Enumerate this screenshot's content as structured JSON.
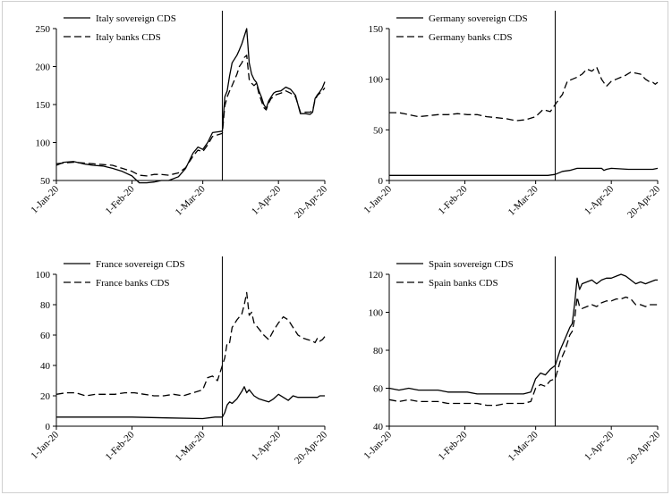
{
  "chart_data": [
    {
      "type": "line",
      "name": "italy",
      "ylim": [
        50,
        250
      ],
      "yticks": [
        50,
        100,
        150,
        200,
        250
      ],
      "xlim": [
        "2020-01-01",
        "2020-04-20"
      ],
      "xticks": [
        {
          "date": "2020-01-01",
          "label": "1-Jan-20"
        },
        {
          "date": "2020-02-01",
          "label": "1-Feb-20"
        },
        {
          "date": "2020-03-01",
          "label": "1-Mar-20"
        },
        {
          "date": "2020-04-01",
          "label": "1-Apr-20"
        },
        {
          "date": "2020-04-20",
          "label": "20-Apr-20"
        }
      ],
      "vline": "2020-03-09",
      "legend_position": "top-left",
      "series": [
        {
          "name": "Italy sovereign CDS",
          "style": "solid",
          "x": [
            "2020-01-01",
            "2020-01-04",
            "2020-01-08",
            "2020-01-12",
            "2020-01-16",
            "2020-01-20",
            "2020-01-24",
            "2020-01-28",
            "2020-02-01",
            "2020-02-04",
            "2020-02-07",
            "2020-02-10",
            "2020-02-13",
            "2020-02-16",
            "2020-02-20",
            "2020-02-23",
            "2020-02-26",
            "2020-02-28",
            "2020-03-01",
            "2020-03-03",
            "2020-03-05",
            "2020-03-07",
            "2020-03-09",
            "2020-03-10",
            "2020-03-11",
            "2020-03-12",
            "2020-03-13",
            "2020-03-15",
            "2020-03-16",
            "2020-03-17",
            "2020-03-18",
            "2020-03-19",
            "2020-03-20",
            "2020-03-21",
            "2020-03-22",
            "2020-03-23",
            "2020-03-24",
            "2020-03-25",
            "2020-03-26",
            "2020-03-27",
            "2020-03-28",
            "2020-03-29",
            "2020-03-30",
            "2020-03-31",
            "2020-04-02",
            "2020-04-04",
            "2020-04-06",
            "2020-04-08",
            "2020-04-10",
            "2020-04-12",
            "2020-04-14",
            "2020-04-15",
            "2020-04-16",
            "2020-04-17",
            "2020-04-18",
            "2020-04-19",
            "2020-04-20"
          ],
          "y": [
            70,
            74,
            75,
            72,
            70,
            69,
            66,
            62,
            56,
            47,
            47,
            48,
            50,
            50,
            55,
            66,
            86,
            94,
            91,
            100,
            113,
            114,
            115,
            160,
            168,
            188,
            205,
            215,
            222,
            230,
            240,
            250,
            205,
            190,
            183,
            179,
            168,
            160,
            150,
            145,
            155,
            160,
            165,
            167,
            168,
            173,
            170,
            162,
            138,
            138,
            137,
            140,
            158,
            163,
            167,
            172,
            180
          ]
        },
        {
          "name": "Italy banks CDS",
          "style": "dashed",
          "x": [
            "2020-01-01",
            "2020-01-04",
            "2020-01-08",
            "2020-01-12",
            "2020-01-16",
            "2020-01-20",
            "2020-01-24",
            "2020-01-28",
            "2020-02-01",
            "2020-02-04",
            "2020-02-07",
            "2020-02-10",
            "2020-02-13",
            "2020-02-16",
            "2020-02-20",
            "2020-02-23",
            "2020-02-26",
            "2020-02-28",
            "2020-03-01",
            "2020-03-03",
            "2020-03-05",
            "2020-03-07",
            "2020-03-09",
            "2020-03-10",
            "2020-03-11",
            "2020-03-12",
            "2020-03-13",
            "2020-03-15",
            "2020-03-16",
            "2020-03-17",
            "2020-03-18",
            "2020-03-19",
            "2020-03-20",
            "2020-03-21",
            "2020-03-22",
            "2020-03-23",
            "2020-03-24",
            "2020-03-25",
            "2020-03-26",
            "2020-03-27",
            "2020-03-28",
            "2020-03-29",
            "2020-03-30",
            "2020-03-31",
            "2020-04-02",
            "2020-04-04",
            "2020-04-06",
            "2020-04-08",
            "2020-04-10",
            "2020-04-12",
            "2020-04-14",
            "2020-04-15",
            "2020-04-16",
            "2020-04-17",
            "2020-04-18",
            "2020-04-19",
            "2020-04-20"
          ],
          "y": [
            72,
            73,
            74,
            73,
            72,
            71,
            70,
            66,
            62,
            57,
            56,
            58,
            58,
            57,
            60,
            67,
            82,
            90,
            88,
            97,
            108,
            110,
            112,
            148,
            160,
            168,
            175,
            190,
            200,
            205,
            212,
            215,
            183,
            178,
            175,
            178,
            164,
            155,
            146,
            143,
            152,
            158,
            160,
            163,
            165,
            168,
            165,
            160,
            140,
            140,
            140,
            142,
            156,
            162,
            165,
            168,
            172
          ]
        }
      ]
    },
    {
      "type": "line",
      "name": "germany",
      "ylim": [
        0,
        150
      ],
      "yticks": [
        0,
        50,
        100,
        150
      ],
      "xlim": [
        "2020-01-01",
        "2020-04-20"
      ],
      "xticks": [
        {
          "date": "2020-01-01",
          "label": "1-Jan-20"
        },
        {
          "date": "2020-02-01",
          "label": "1-Feb-20"
        },
        {
          "date": "2020-03-01",
          "label": "1-Mar-20"
        },
        {
          "date": "2020-04-01",
          "label": "1-Apr-20"
        },
        {
          "date": "2020-04-20",
          "label": "20-Apr-20"
        }
      ],
      "vline": "2020-03-09",
      "legend_position": "top-left",
      "series": [
        {
          "name": "Germany sovereign CDS",
          "style": "solid",
          "x": [
            "2020-01-01",
            "2020-02-01",
            "2020-03-01",
            "2020-03-06",
            "2020-03-09",
            "2020-03-12",
            "2020-03-15",
            "2020-03-18",
            "2020-03-22",
            "2020-03-26",
            "2020-03-28",
            "2020-03-29",
            "2020-03-30",
            "2020-04-01",
            "2020-04-08",
            "2020-04-14",
            "2020-04-18",
            "2020-04-20"
          ],
          "y": [
            5,
            5,
            5,
            5,
            6,
            9,
            10,
            12,
            12,
            12,
            12,
            10,
            11,
            12,
            11,
            11,
            11,
            12
          ]
        },
        {
          "name": "Germany banks CDS",
          "style": "dashed",
          "x": [
            "2020-01-01",
            "2020-01-05",
            "2020-01-09",
            "2020-01-13",
            "2020-01-17",
            "2020-01-21",
            "2020-01-25",
            "2020-01-29",
            "2020-02-02",
            "2020-02-06",
            "2020-02-10",
            "2020-02-14",
            "2020-02-18",
            "2020-02-22",
            "2020-02-26",
            "2020-03-01",
            "2020-03-04",
            "2020-03-07",
            "2020-03-09",
            "2020-03-11",
            "2020-03-12",
            "2020-03-13",
            "2020-03-14",
            "2020-03-16",
            "2020-03-18",
            "2020-03-20",
            "2020-03-22",
            "2020-03-24",
            "2020-03-26",
            "2020-03-28",
            "2020-03-30",
            "2020-04-01",
            "2020-04-03",
            "2020-04-05",
            "2020-04-07",
            "2020-04-09",
            "2020-04-11",
            "2020-04-13",
            "2020-04-15",
            "2020-04-17",
            "2020-04-18",
            "2020-04-19",
            "2020-04-20"
          ],
          "y": [
            67,
            67,
            65,
            63,
            64,
            65,
            65,
            66,
            65,
            65,
            63,
            62,
            61,
            59,
            60,
            63,
            70,
            68,
            75,
            82,
            85,
            92,
            98,
            100,
            102,
            105,
            110,
            108,
            112,
            100,
            93,
            98,
            100,
            102,
            104,
            107,
            106,
            105,
            100,
            97,
            97,
            95,
            97
          ]
        }
      ]
    },
    {
      "type": "line",
      "name": "france",
      "ylim": [
        0,
        100
      ],
      "yticks": [
        0,
        20,
        40,
        60,
        80,
        100
      ],
      "xlim": [
        "2020-01-01",
        "2020-04-20"
      ],
      "xticks": [
        {
          "date": "2020-01-01",
          "label": "1-Jan-20"
        },
        {
          "date": "2020-02-01",
          "label": "1-Feb-20"
        },
        {
          "date": "2020-03-01",
          "label": "1-Mar-20"
        },
        {
          "date": "2020-04-01",
          "label": "1-Apr-20"
        },
        {
          "date": "2020-04-20",
          "label": "20-Apr-20"
        }
      ],
      "vline": "2020-03-09",
      "legend_position": "top-left",
      "series": [
        {
          "name": "France sovereign CDS",
          "style": "solid",
          "x": [
            "2020-01-01",
            "2020-01-15",
            "2020-02-01",
            "2020-02-15",
            "2020-03-01",
            "2020-03-06",
            "2020-03-09",
            "2020-03-10",
            "2020-03-11",
            "2020-03-12",
            "2020-03-13",
            "2020-03-15",
            "2020-03-17",
            "2020-03-18",
            "2020-03-19",
            "2020-03-20",
            "2020-03-21",
            "2020-03-22",
            "2020-03-24",
            "2020-03-26",
            "2020-03-28",
            "2020-03-30",
            "2020-04-01",
            "2020-04-03",
            "2020-04-05",
            "2020-04-07",
            "2020-04-09",
            "2020-04-11",
            "2020-04-13",
            "2020-04-15",
            "2020-04-17",
            "2020-04-18",
            "2020-04-20"
          ],
          "y": [
            6,
            6,
            6,
            5.5,
            5,
            6,
            6,
            9,
            14,
            16,
            15,
            18,
            23,
            26,
            22,
            24,
            22,
            20,
            18,
            17,
            16,
            18,
            21,
            19,
            17,
            20,
            19,
            19,
            19,
            19,
            19,
            20,
            20
          ]
        },
        {
          "name": "France banks CDS",
          "style": "dashed",
          "x": [
            "2020-01-01",
            "2020-01-05",
            "2020-01-09",
            "2020-01-13",
            "2020-01-17",
            "2020-01-21",
            "2020-01-25",
            "2020-01-29",
            "2020-02-02",
            "2020-02-06",
            "2020-02-10",
            "2020-02-14",
            "2020-02-18",
            "2020-02-22",
            "2020-02-26",
            "2020-03-01",
            "2020-03-03",
            "2020-03-05",
            "2020-03-07",
            "2020-03-09",
            "2020-03-10",
            "2020-03-11",
            "2020-03-12",
            "2020-03-13",
            "2020-03-15",
            "2020-03-17",
            "2020-03-18",
            "2020-03-19",
            "2020-03-20",
            "2020-03-21",
            "2020-03-22",
            "2020-03-24",
            "2020-03-26",
            "2020-03-28",
            "2020-03-30",
            "2020-04-01",
            "2020-04-03",
            "2020-04-05",
            "2020-04-07",
            "2020-04-09",
            "2020-04-11",
            "2020-04-13",
            "2020-04-15",
            "2020-04-16",
            "2020-04-17",
            "2020-04-18",
            "2020-04-19",
            "2020-04-20"
          ],
          "y": [
            21,
            22,
            22,
            20,
            21,
            21,
            21,
            22,
            22,
            21,
            20,
            20,
            21,
            20,
            22,
            24,
            32,
            33,
            30,
            40,
            45,
            55,
            55,
            65,
            70,
            74,
            80,
            88,
            73,
            75,
            68,
            64,
            60,
            57,
            63,
            68,
            72,
            70,
            65,
            60,
            58,
            57,
            56,
            55,
            58,
            56,
            57,
            59
          ]
        }
      ]
    },
    {
      "type": "line",
      "name": "spain",
      "ylim": [
        40,
        120
      ],
      "yticks": [
        40,
        60,
        80,
        100,
        120
      ],
      "xlim": [
        "2020-01-01",
        "2020-04-20"
      ],
      "xticks": [
        {
          "date": "2020-01-01",
          "label": "1-Jan-20"
        },
        {
          "date": "2020-02-01",
          "label": "1-Feb-20"
        },
        {
          "date": "2020-03-01",
          "label": "1-Mar-20"
        },
        {
          "date": "2020-04-01",
          "label": "1-Apr-20"
        },
        {
          "date": "2020-04-20",
          "label": "20-Apr-20"
        }
      ],
      "vline": "2020-03-09",
      "legend_position": "top-left",
      "series": [
        {
          "name": "Spain sovereign CDS",
          "style": "solid",
          "x": [
            "2020-01-01",
            "2020-01-05",
            "2020-01-09",
            "2020-01-13",
            "2020-01-17",
            "2020-01-21",
            "2020-01-25",
            "2020-01-29",
            "2020-02-02",
            "2020-02-06",
            "2020-02-10",
            "2020-02-14",
            "2020-02-18",
            "2020-02-22",
            "2020-02-25",
            "2020-02-28",
            "2020-03-01",
            "2020-03-03",
            "2020-03-05",
            "2020-03-07",
            "2020-03-09",
            "2020-03-11",
            "2020-03-13",
            "2020-03-15",
            "2020-03-16",
            "2020-03-17",
            "2020-03-18",
            "2020-03-19",
            "2020-03-20",
            "2020-03-22",
            "2020-03-24",
            "2020-03-26",
            "2020-03-28",
            "2020-03-30",
            "2020-04-01",
            "2020-04-03",
            "2020-04-05",
            "2020-04-07",
            "2020-04-09",
            "2020-04-11",
            "2020-04-13",
            "2020-04-15",
            "2020-04-17",
            "2020-04-19",
            "2020-04-20"
          ],
          "y": [
            60,
            59,
            60,
            59,
            59,
            59,
            58,
            58,
            58,
            57,
            57,
            57,
            57,
            57,
            57,
            58,
            65,
            68,
            67,
            70,
            72,
            80,
            86,
            92,
            94,
            105,
            118,
            112,
            115,
            116,
            117,
            115,
            117,
            118,
            118,
            119,
            120,
            119,
            117,
            115,
            116,
            115,
            116,
            117,
            117
          ]
        },
        {
          "name": "Spain banks CDS",
          "style": "dashed",
          "x": [
            "2020-01-01",
            "2020-01-05",
            "2020-01-09",
            "2020-01-13",
            "2020-01-17",
            "2020-01-21",
            "2020-01-25",
            "2020-01-29",
            "2020-02-02",
            "2020-02-06",
            "2020-02-10",
            "2020-02-14",
            "2020-02-18",
            "2020-02-22",
            "2020-02-25",
            "2020-02-28",
            "2020-03-01",
            "2020-03-03",
            "2020-03-05",
            "2020-03-07",
            "2020-03-09",
            "2020-03-11",
            "2020-03-13",
            "2020-03-15",
            "2020-03-16",
            "2020-03-17",
            "2020-03-18",
            "2020-03-19",
            "2020-03-20",
            "2020-03-22",
            "2020-03-24",
            "2020-03-26",
            "2020-03-28",
            "2020-03-30",
            "2020-04-01",
            "2020-04-03",
            "2020-04-05",
            "2020-04-07",
            "2020-04-09",
            "2020-04-11",
            "2020-04-13",
            "2020-04-15",
            "2020-04-17",
            "2020-04-19",
            "2020-04-20"
          ],
          "y": [
            54,
            53,
            54,
            53,
            53,
            53,
            52,
            52,
            52,
            52,
            51,
            51,
            52,
            52,
            52,
            53,
            60,
            62,
            61,
            64,
            65,
            74,
            80,
            88,
            90,
            97,
            108,
            103,
            102,
            103,
            104,
            103,
            105,
            106,
            106,
            107,
            107,
            108,
            107,
            104,
            104,
            103,
            104,
            104,
            104
          ]
        }
      ]
    }
  ]
}
